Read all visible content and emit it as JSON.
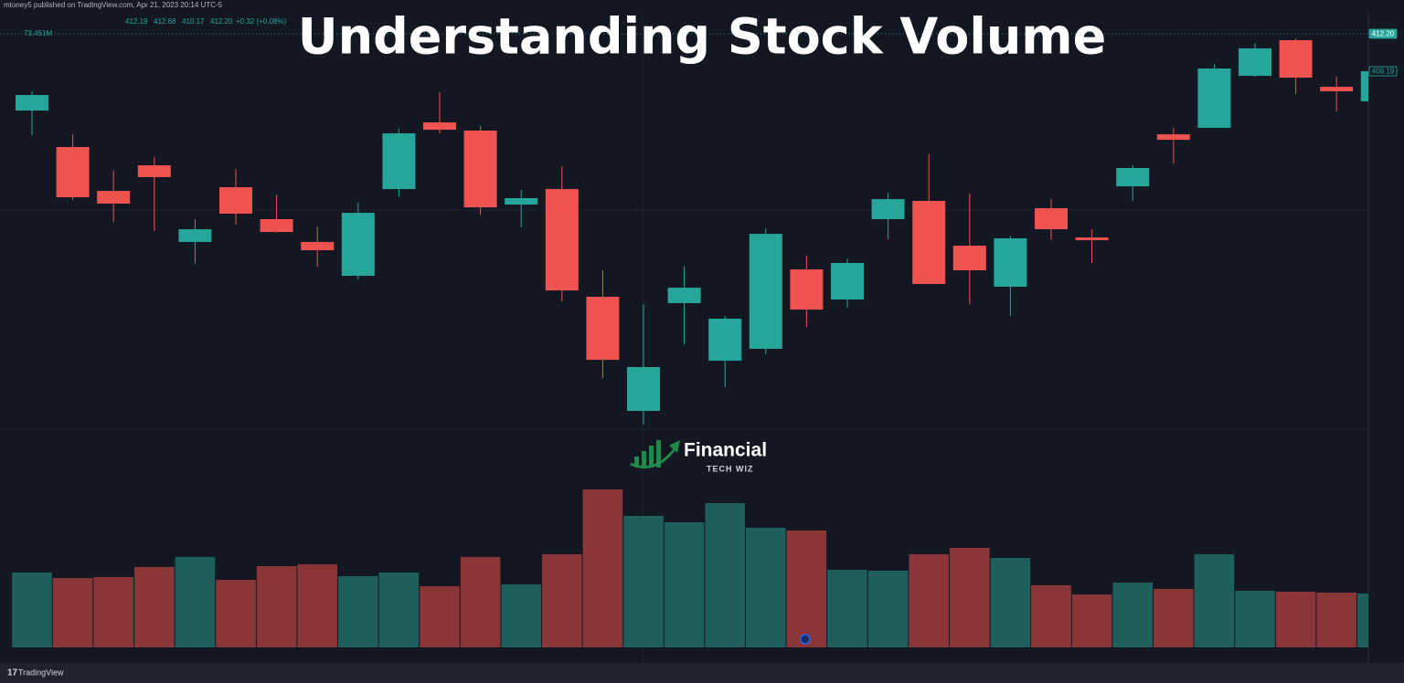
{
  "header": {
    "byline": "mtoney5 published on TradingView.com, Apr 21, 2023 20:14 UTC-5",
    "ohlc": [
      "412.19",
      "412.68",
      "410.17",
      "412.20",
      "+0.32 (+0.08%)"
    ],
    "volume_label": "73.451M"
  },
  "logo": {
    "name": "Financial",
    "tagline": "TECH WIZ"
  },
  "footer": {
    "brand": "TradingView"
  },
  "chart_data": {
    "type": "candlestick",
    "title": "Understanding Stock Volume",
    "candles": {
      "open": [
        406.03,
        403.1,
        399.57,
        401.63,
        395.47,
        399.87,
        397.3,
        395.47,
        392.75,
        399.72,
        405.08,
        404.42,
        398.47,
        399.72,
        391.06,
        381.89,
        390.55,
        385.92,
        386.88,
        393.26,
        390.84,
        397.3,
        398.77,
        395.17,
        391.87,
        398.18,
        395.83,
        399.94,
        404.12,
        404.64,
        408.82,
        411.69,
        407.94,
        406.77
      ],
      "high": [
        407.58,
        404.12,
        401.19,
        402.29,
        397.3,
        401.34,
        399.28,
        396.71,
        398.62,
        404.56,
        407.5,
        404.79,
        399.65,
        401.56,
        393.19,
        390.47,
        393.55,
        389.52,
        396.57,
        394.36,
        394.14,
        399.43,
        402.51,
        399.35,
        395.98,
        398.91,
        396.49,
        401.63,
        404.64,
        409.78,
        411.47,
        411.83,
        408.75,
        409.19
      ],
      "low": [
        404.05,
        398.84,
        397.08,
        396.35,
        393.7,
        396.86,
        396.2,
        393.48,
        392.45,
        399.13,
        404.2,
        397.67,
        396.64,
        390.69,
        384.52,
        380.78,
        387.24,
        383.79,
        386.44,
        388.64,
        390.18,
        395.68,
        392.09,
        390.47,
        389.52,
        395.61,
        393.77,
        398.77,
        401.78,
        404.64,
        408.75,
        407.36,
        405.96,
        406.77
      ],
      "close": [
        407.28,
        399.06,
        398.55,
        400.68,
        396.49,
        397.74,
        396.27,
        394.8,
        397.81,
        404.2,
        404.49,
        398.25,
        398.99,
        391.57,
        385.99,
        385.41,
        391.79,
        389.3,
        396.12,
        390.03,
        393.78,
        398.91,
        392.09,
        393.19,
        395.76,
        396.49,
        395.61,
        401.41,
        403.68,
        409.41,
        411.03,
        408.68,
        407.58,
        409.19
      ]
    },
    "volume": [
      102.1,
      94.6,
      95.9,
      109.6,
      123.3,
      92.1,
      110.8,
      113.3,
      97.1,
      102.1,
      83.4,
      123.3,
      85.9,
      127.0,
      215.4,
      179.3,
      170.6,
      196.7,
      163.1,
      159.4,
      105.8,
      104.6,
      127.0,
      135.7,
      122.0,
      84.7,
      72.2,
      88.4,
      79.7,
      127.0,
      77.2,
      75.9,
      74.7,
      73.451
    ],
    "ylim": [
      380.42,
      413.45
    ],
    "vlim": [
      0,
      235.3
    ],
    "price_labels": [
      {
        "value": 412.2,
        "label": "412.20"
      },
      {
        "value": 409.19,
        "label": "409.19"
      }
    ],
    "up_color": "#26a69a",
    "down_color": "#ef5350",
    "volume_up_color": "#1f5f5b",
    "volume_down_color": "#8a3638"
  }
}
